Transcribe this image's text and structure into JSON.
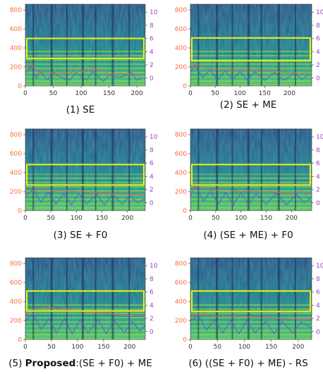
{
  "chart_data": [
    {
      "type": "heatmap",
      "caption": "(1) SE",
      "x_ticks": [
        0,
        50,
        100,
        150,
        200
      ],
      "x_max": 215,
      "left_ticks": [
        0,
        200,
        400,
        600,
        800
      ],
      "left_range": [
        0,
        860
      ],
      "right_ticks": [
        0,
        2,
        4,
        6,
        8,
        10
      ],
      "right_range": [
        -1.2,
        11.2
      ],
      "box_left_units": [
        290,
        500
      ],
      "red_curve": [
        [
          0,
          120
        ],
        [
          10,
          240
        ],
        [
          20,
          160
        ],
        [
          30,
          140
        ],
        [
          45,
          150
        ],
        [
          55,
          120
        ],
        [
          60,
          150
        ],
        [
          80,
          130
        ],
        [
          90,
          170
        ],
        [
          110,
          150
        ],
        [
          120,
          180
        ],
        [
          140,
          160
        ],
        [
          150,
          120
        ],
        [
          170,
          130
        ],
        [
          190,
          120
        ],
        [
          210,
          110
        ]
      ],
      "blue_curve": [
        [
          0,
          140
        ],
        [
          10,
          200
        ],
        [
          20,
          80
        ],
        [
          25,
          160
        ],
        [
          40,
          60
        ],
        [
          50,
          150
        ],
        [
          60,
          100
        ],
        [
          80,
          60
        ],
        [
          90,
          140
        ],
        [
          110,
          60
        ],
        [
          120,
          150
        ],
        [
          140,
          50
        ],
        [
          150,
          110
        ],
        [
          170,
          90
        ],
        [
          190,
          140
        ],
        [
          200,
          60
        ],
        [
          210,
          90
        ]
      ]
    },
    {
      "type": "heatmap",
      "caption": "(2) SE + ME",
      "x_ticks": [
        0,
        50,
        100,
        150,
        200
      ],
      "x_max": 245,
      "left_ticks": [
        0,
        200,
        400,
        600,
        800
      ],
      "left_range": [
        0,
        860
      ],
      "right_ticks": [
        0,
        2,
        4,
        6,
        8,
        10
      ],
      "right_range": [
        -1.2,
        11.2
      ],
      "box_left_units": [
        265,
        505
      ],
      "red_curve": [
        [
          0,
          180
        ],
        [
          10,
          230
        ],
        [
          25,
          200
        ],
        [
          40,
          180
        ],
        [
          60,
          170
        ],
        [
          80,
          160
        ],
        [
          100,
          175
        ],
        [
          120,
          160
        ],
        [
          140,
          165
        ],
        [
          160,
          150
        ],
        [
          180,
          150
        ],
        [
          200,
          140
        ],
        [
          220,
          130
        ],
        [
          240,
          140
        ]
      ],
      "blue_curve": [
        [
          0,
          150
        ],
        [
          10,
          210
        ],
        [
          25,
          90
        ],
        [
          40,
          170
        ],
        [
          55,
          60
        ],
        [
          70,
          160
        ],
        [
          85,
          70
        ],
        [
          100,
          150
        ],
        [
          115,
          60
        ],
        [
          130,
          150
        ],
        [
          150,
          60
        ],
        [
          170,
          140
        ],
        [
          190,
          60
        ],
        [
          210,
          140
        ],
        [
          225,
          70
        ],
        [
          240,
          120
        ]
      ]
    },
    {
      "type": "heatmap",
      "caption": "(3) SE + F0",
      "x_ticks": [
        0,
        50,
        100,
        150,
        200
      ],
      "x_max": 235,
      "left_ticks": [
        0,
        200,
        400,
        600,
        800
      ],
      "left_range": [
        0,
        860
      ],
      "right_ticks": [
        0,
        2,
        4,
        6,
        8,
        10
      ],
      "right_range": [
        -1.2,
        11.2
      ],
      "box_left_units": [
        270,
        485
      ],
      "red_curve": [
        [
          0,
          190
        ],
        [
          15,
          200
        ],
        [
          30,
          230
        ],
        [
          45,
          220
        ],
        [
          60,
          210
        ],
        [
          80,
          215
        ],
        [
          100,
          200
        ],
        [
          120,
          195
        ],
        [
          140,
          185
        ],
        [
          160,
          180
        ],
        [
          180,
          175
        ],
        [
          200,
          170
        ],
        [
          220,
          165
        ],
        [
          235,
          160
        ]
      ],
      "blue_curve": [
        [
          0,
          160
        ],
        [
          15,
          220
        ],
        [
          30,
          90
        ],
        [
          45,
          190
        ],
        [
          60,
          70
        ],
        [
          75,
          180
        ],
        [
          90,
          60
        ],
        [
          105,
          180
        ],
        [
          120,
          70
        ],
        [
          140,
          170
        ],
        [
          155,
          60
        ],
        [
          170,
          170
        ],
        [
          190,
          70
        ],
        [
          205,
          160
        ],
        [
          220,
          80
        ],
        [
          235,
          130
        ]
      ]
    },
    {
      "type": "heatmap",
      "caption": "(4) (SE + ME) + F0",
      "x_ticks": [
        0,
        50,
        100,
        150,
        200
      ],
      "x_max": 240,
      "left_ticks": [
        0,
        200,
        400,
        600,
        800
      ],
      "left_range": [
        0,
        860
      ],
      "right_ticks": [
        0,
        2,
        4,
        6,
        8,
        10
      ],
      "right_range": [
        -1.2,
        11.2
      ],
      "box_left_units": [
        270,
        485
      ],
      "red_curve": [
        [
          0,
          170
        ],
        [
          10,
          260
        ],
        [
          25,
          230
        ],
        [
          40,
          210
        ],
        [
          60,
          225
        ],
        [
          80,
          215
        ],
        [
          100,
          200
        ],
        [
          120,
          210
        ],
        [
          140,
          195
        ],
        [
          160,
          200
        ],
        [
          180,
          190
        ],
        [
          200,
          185
        ],
        [
          220,
          200
        ],
        [
          240,
          180
        ]
      ],
      "blue_curve": [
        [
          0,
          150
        ],
        [
          10,
          280
        ],
        [
          25,
          100
        ],
        [
          40,
          200
        ],
        [
          55,
          70
        ],
        [
          70,
          190
        ],
        [
          85,
          60
        ],
        [
          100,
          190
        ],
        [
          115,
          60
        ],
        [
          130,
          180
        ],
        [
          150,
          70
        ],
        [
          170,
          180
        ],
        [
          190,
          60
        ],
        [
          210,
          170
        ],
        [
          225,
          80
        ],
        [
          240,
          140
        ]
      ]
    },
    {
      "type": "heatmap",
      "caption_prefix": "(5) ",
      "caption_bold": "Proposed",
      "caption_rest": ":(SE + F0) + ME",
      "x_ticks": [
        0,
        50,
        100,
        150,
        200
      ],
      "x_max": 230,
      "left_ticks": [
        0,
        200,
        400,
        600,
        800
      ],
      "left_range": [
        0,
        860
      ],
      "right_ticks": [
        0,
        2,
        4,
        6,
        8,
        10
      ],
      "right_range": [
        -1.2,
        11.2
      ],
      "box_left_units": [
        300,
        510
      ],
      "red_curve": [
        [
          0,
          260
        ],
        [
          15,
          320
        ],
        [
          30,
          330
        ],
        [
          45,
          340
        ],
        [
          60,
          320
        ],
        [
          80,
          330
        ],
        [
          100,
          300
        ],
        [
          120,
          290
        ],
        [
          140,
          280
        ],
        [
          160,
          270
        ],
        [
          180,
          260
        ],
        [
          200,
          255
        ],
        [
          220,
          250
        ],
        [
          230,
          245
        ]
      ],
      "blue_curve": [
        [
          0,
          200
        ],
        [
          15,
          270
        ],
        [
          30,
          110
        ],
        [
          45,
          220
        ],
        [
          60,
          70
        ],
        [
          75,
          220
        ],
        [
          90,
          60
        ],
        [
          105,
          210
        ],
        [
          120,
          70
        ],
        [
          140,
          210
        ],
        [
          155,
          60
        ],
        [
          170,
          200
        ],
        [
          190,
          70
        ],
        [
          205,
          190
        ],
        [
          220,
          90
        ],
        [
          230,
          150
        ]
      ]
    },
    {
      "type": "heatmap",
      "caption": "(6) ((SE + F0) + ME) - RS",
      "x_ticks": [
        0,
        50,
        100,
        150,
        200
      ],
      "x_max": 225,
      "left_ticks": [
        0,
        200,
        400,
        600,
        800
      ],
      "left_range": [
        0,
        860
      ],
      "right_ticks": [
        0,
        2,
        4,
        6,
        8,
        10
      ],
      "right_range": [
        -1.2,
        11.2
      ],
      "box_left_units": [
        295,
        510
      ],
      "red_curve": [
        [
          0,
          240
        ],
        [
          15,
          260
        ],
        [
          30,
          255
        ],
        [
          45,
          250
        ],
        [
          60,
          245
        ],
        [
          80,
          250
        ],
        [
          100,
          240
        ],
        [
          120,
          235
        ],
        [
          140,
          230
        ],
        [
          160,
          225
        ],
        [
          180,
          220
        ],
        [
          200,
          215
        ],
        [
          225,
          210
        ]
      ],
      "blue_curve": [
        [
          0,
          200
        ],
        [
          15,
          250
        ],
        [
          30,
          100
        ],
        [
          45,
          210
        ],
        [
          60,
          70
        ],
        [
          75,
          200
        ],
        [
          90,
          60
        ],
        [
          105,
          200
        ],
        [
          120,
          70
        ],
        [
          140,
          190
        ],
        [
          155,
          60
        ],
        [
          170,
          190
        ],
        [
          190,
          70
        ],
        [
          205,
          180
        ],
        [
          225,
          120
        ]
      ]
    }
  ]
}
